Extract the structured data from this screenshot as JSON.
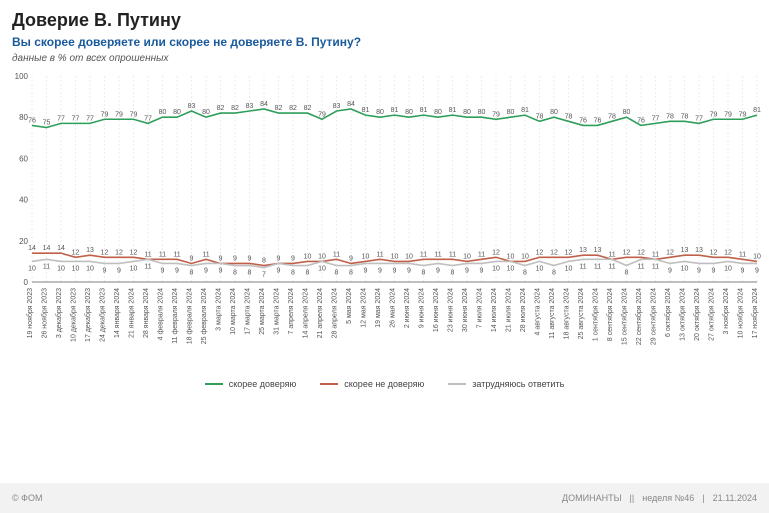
{
  "title": "Доверие В. Путину",
  "question": "Вы скорее доверяете или скорее не доверяете В. Путину?",
  "subtitle": "данные в % от всех опрошенных",
  "footer": {
    "left": "© ФОМ",
    "right1": "ДОМИНАНТЫ",
    "right2": "неделя №46",
    "right3": "21.11.2024"
  },
  "legend": {
    "trust": "скорее доверяю",
    "distrust": "скорее не доверяю",
    "dk": "затрудняюсь ответить"
  },
  "chart": {
    "type": "line",
    "ylim": [
      0,
      100
    ],
    "ytick_step": 20,
    "colors": {
      "trust": "#2e9e5b",
      "distrust": "#c0604a",
      "dk": "#bfbfbf",
      "grid": "#d8d8d8",
      "axis": "#555555",
      "bg": "#ffffff",
      "label": "#555555"
    },
    "line_width": 1.6,
    "label_fontsize": 7,
    "axis_fontsize": 8,
    "dates": [
      "19 ноября 2023",
      "26 ноября 2023",
      "3 декабря 2023",
      "10 декабря 2023",
      "17 декабря 2023",
      "24 декабря 2023",
      "14 января 2024",
      "21 января 2024",
      "28 января 2024",
      "4 февраля 2024",
      "11 февраля 2024",
      "18 февраля 2024",
      "25 февраля 2024",
      "3 марта 2024",
      "10 марта 2024",
      "17 марта 2024",
      "25 марта 2024",
      "31 марта 2024",
      "7 апреля 2024",
      "14 апреля 2024",
      "21 апреля 2024",
      "28 апреля 2024",
      "5 мая 2024",
      "12 мая 2024",
      "19 мая 2024",
      "26 мая 2024",
      "2 июня 2024",
      "9 июня 2024",
      "16 июня 2024",
      "23 июня 2024",
      "30 июня 2024",
      "7 июля 2024",
      "14 июля 2024",
      "21 июля 2024",
      "28 июля 2024",
      "4 августа 2024",
      "11 августа 2024",
      "18 августа 2024",
      "25 августа 2024",
      "1 сентября 2024",
      "8 сентября 2024",
      "15 сентября 2024",
      "22 сентября 2024",
      "29 сентября 2024",
      "6 октября 2024",
      "13 октября 2024",
      "20 октября 2024",
      "27 октября 2024",
      "3 ноября 2024",
      "10 ноября 2024",
      "17 ноября 2024"
    ],
    "trust": [
      76,
      75,
      77,
      77,
      77,
      79,
      79,
      79,
      77,
      80,
      80,
      83,
      80,
      82,
      82,
      83,
      84,
      82,
      82,
      82,
      79,
      83,
      84,
      81,
      80,
      81,
      80,
      81,
      80,
      81,
      80,
      80,
      79,
      80,
      81,
      78,
      80,
      78,
      76,
      76,
      78,
      80,
      76,
      77,
      78,
      78,
      77,
      79,
      79,
      79,
      81
    ],
    "distrust": [
      14,
      14,
      14,
      12,
      13,
      12,
      12,
      12,
      11,
      11,
      11,
      9,
      11,
      9,
      9,
      9,
      8,
      9,
      9,
      10,
      10,
      11,
      9,
      10,
      11,
      10,
      10,
      11,
      11,
      11,
      10,
      11,
      12,
      10,
      10,
      12,
      12,
      12,
      13,
      13,
      11,
      12,
      12,
      11,
      12,
      13,
      13,
      12,
      12,
      11,
      10
    ],
    "dk": [
      10,
      11,
      10,
      10,
      10,
      9,
      9,
      10,
      11,
      9,
      9,
      8,
      9,
      9,
      8,
      8,
      7,
      9,
      8,
      8,
      10,
      8,
      8,
      9,
      9,
      9,
      9,
      8,
      9,
      8,
      9,
      9,
      10,
      10,
      8,
      10,
      8,
      10,
      11,
      11,
      11,
      8,
      11,
      11,
      9,
      10,
      9,
      9,
      10,
      9,
      9
    ]
  }
}
